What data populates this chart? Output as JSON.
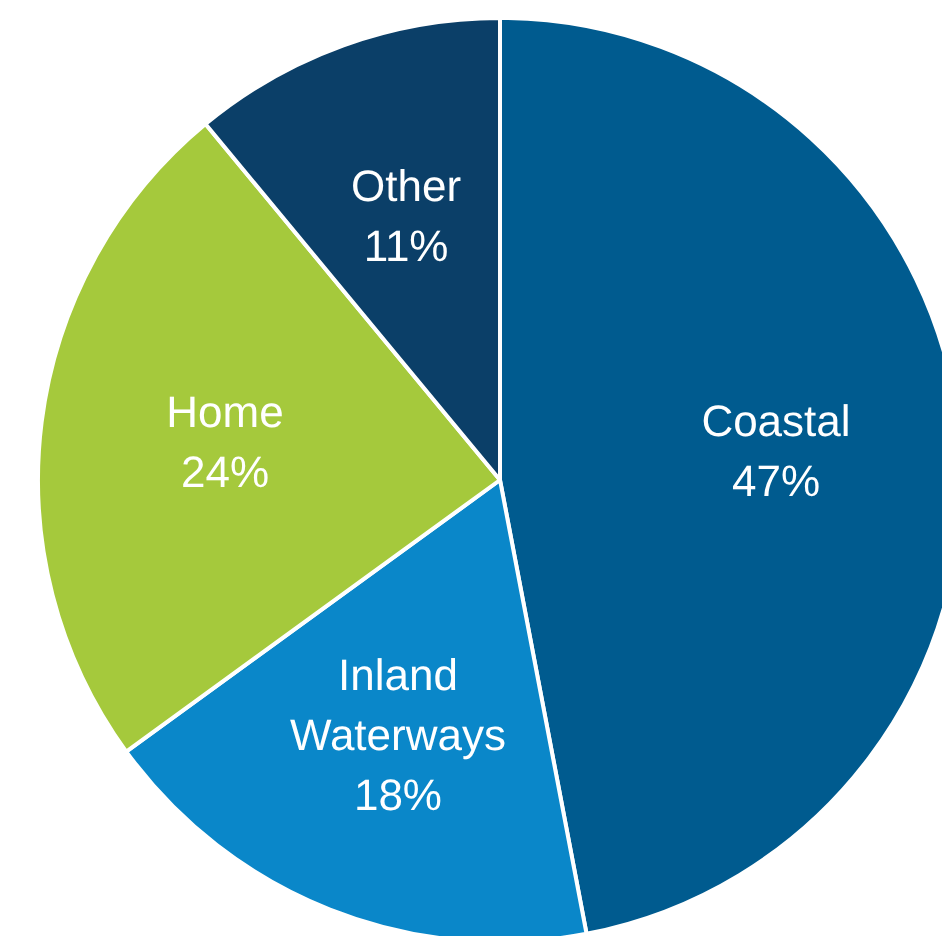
{
  "chart_data": {
    "type": "pie",
    "categories": [
      "Coastal",
      "Inland Waterways",
      "Home",
      "Other"
    ],
    "values": [
      47,
      18,
      24,
      11
    ],
    "value_labels": [
      "47%",
      "18%",
      "24%",
      "11%"
    ],
    "colors": [
      "#005b8f",
      "#0a87c9",
      "#a5c93c",
      "#0b3f68"
    ]
  }
}
